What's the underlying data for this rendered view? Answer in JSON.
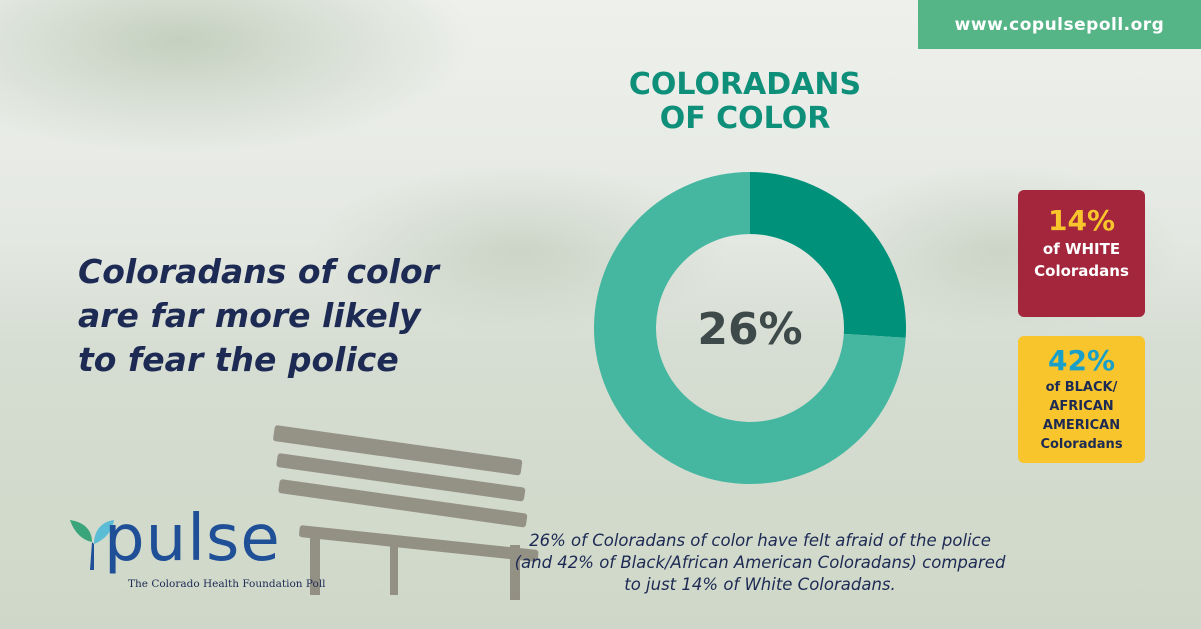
{
  "header": {
    "url": "www.copulsepoll.org"
  },
  "headline": [
    "Coloradans of color",
    "are far more likely",
    "to fear the police"
  ],
  "chart_data": {
    "type": "pie",
    "title": "COLORADANS OF COLOR",
    "title_lines": [
      "COLORADANS",
      "OF COLOR"
    ],
    "slices": [
      {
        "label": "Have felt afraid of the police",
        "value": 26,
        "color": "#00917a"
      },
      {
        "label": "",
        "value": 74,
        "color": "#45b7a0"
      }
    ],
    "center_label": "26%",
    "annotations": [
      {
        "value": "14%",
        "label_lines": [
          "of WHITE",
          "Coloradans"
        ]
      },
      {
        "value": "42%",
        "label_lines": [
          "of BLACK/",
          "AFRICAN",
          "AMERICAN",
          "Coloradans"
        ]
      }
    ]
  },
  "colors": {
    "accent_green": "#55b587",
    "teal_dark": "#00917a",
    "teal_light": "#45b7a0",
    "navy": "#1d2a54",
    "crimson": "#a3263c",
    "yellow": "#f8c62c",
    "cyan": "#1aa0c8"
  },
  "logo": {
    "word": "pulse",
    "tagline": "The Colorado Health Foundation Poll",
    "icon": "leaf-icon"
  },
  "caption": [
    "26% of Coloradans of color have felt afraid of the police",
    "(and 42% of Black/African American Coloradans) compared",
    "to just 14% of White Coloradans."
  ]
}
